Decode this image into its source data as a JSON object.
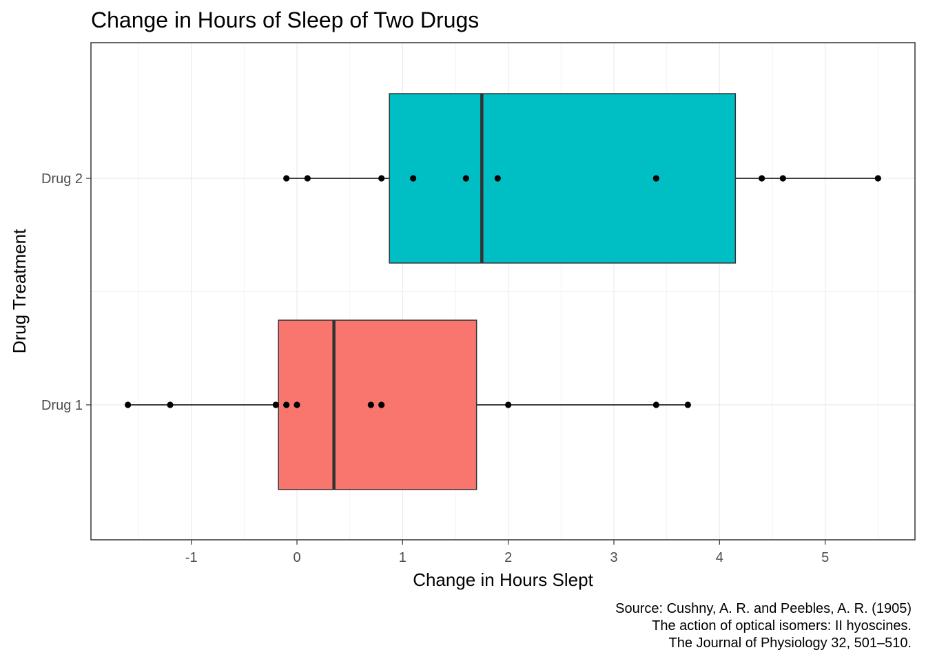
{
  "chart_data": {
    "type": "boxplot",
    "orientation": "horizontal",
    "title": "Change in Hours of Sleep of Two Drugs",
    "xlabel": "Change in Hours Slept",
    "ylabel": "Drug Treatment",
    "xlim": [
      -1.95,
      5.85
    ],
    "x_ticks": [
      -1,
      0,
      1,
      2,
      3,
      4,
      5
    ],
    "x_tick_labels": [
      "-1",
      "0",
      "1",
      "2",
      "3",
      "4",
      "5"
    ],
    "categories": [
      "Drug 1",
      "Drug 2"
    ],
    "grid": true,
    "series": [
      {
        "category": "Drug 1",
        "color": "#F8766D",
        "q1": -0.175,
        "median": 0.35,
        "q3": 1.7,
        "whisker_low": -1.6,
        "whisker_high": 3.7,
        "points": [
          0.7,
          -1.6,
          -0.2,
          -1.2,
          -0.1,
          3.4,
          3.7,
          0.8,
          0.0,
          2.0
        ]
      },
      {
        "category": "Drug 2",
        "color": "#00BFC4",
        "q1": 0.875,
        "median": 1.75,
        "q3": 4.15,
        "whisker_low": -0.1,
        "whisker_high": 5.5,
        "points": [
          1.9,
          0.8,
          1.1,
          0.1,
          -0.1,
          4.4,
          5.5,
          1.6,
          4.6,
          3.4
        ]
      }
    ],
    "caption": [
      "Source: Cushny, A. R. and Peebles, A. R. (1905)",
      "The action of optical isomers: II hyoscines.",
      "The Journal of Physiology 32, 501–510."
    ]
  }
}
